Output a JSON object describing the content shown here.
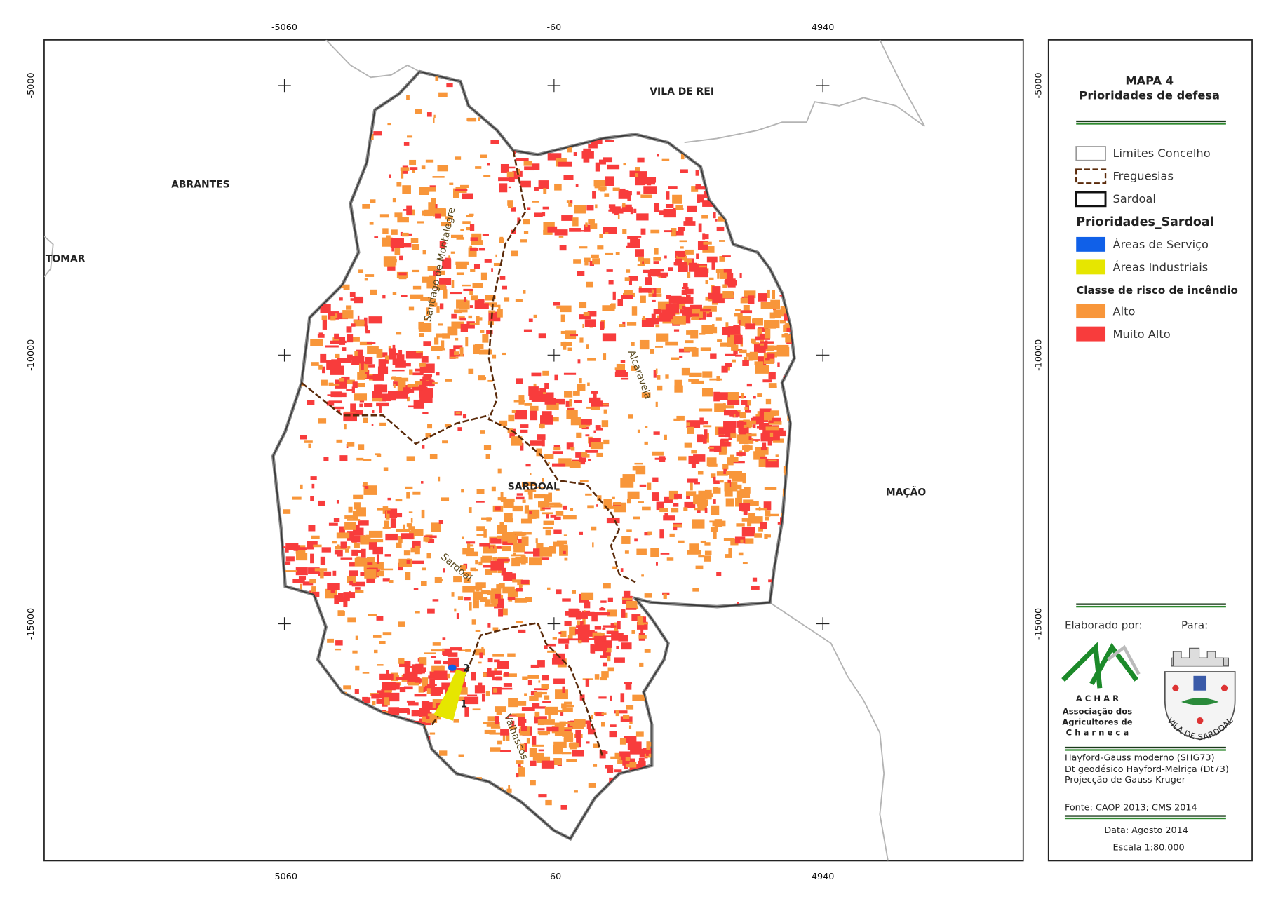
{
  "map": {
    "grid": {
      "x_labels": [
        -5060,
        -60,
        4940
      ],
      "y_labels": [
        -5000,
        -10000,
        -15000
      ]
    },
    "places": [
      "VILA DE REI",
      "ABRANTES",
      "TOMAR",
      "MAÇÃO",
      "SARDOAL"
    ],
    "freguesias": [
      "Santiago de Montalegre",
      "Alcaravela",
      "Sardoal",
      "Valhascos"
    ],
    "sites": [
      "1",
      "2"
    ]
  },
  "legend": {
    "title": "MAPA 4",
    "subtitle": "Prioridades de defesa",
    "boundaries": [
      "Limites Concelho",
      "Freguesias",
      "Sardoal"
    ],
    "group_title": "Prioridades_Sardoal",
    "priorities": [
      {
        "label": "Áreas de Serviço",
        "color": "#1060e8"
      },
      {
        "label": "Áreas Industriais",
        "color": "#e6e600"
      }
    ],
    "risk_title": "Classe de risco de incêndio",
    "risk": [
      {
        "label": "Alto",
        "color": "#f8963a"
      },
      {
        "label": "Muito Alto",
        "color": "#f83c3c"
      }
    ]
  },
  "credits": {
    "made_by": "Elaborado por:",
    "for": "Para:",
    "logo_acronym": "A C H A R",
    "logo_lines": [
      "Associação dos",
      "Agricultores de",
      "C h a r n e c a"
    ],
    "crest_text": "VILA DE SARDOAL",
    "projection": [
      "Hayford-Gauss moderno (SHG73)",
      "Dt geodésico Hayford-Melriça (Dt73)",
      "Projecção de Gauss-Kruger"
    ],
    "source": "Fonte: CAOP 2013; CMS 2014",
    "date": "Data: Agosto 2014",
    "scale": "Escala 1:80.000"
  }
}
